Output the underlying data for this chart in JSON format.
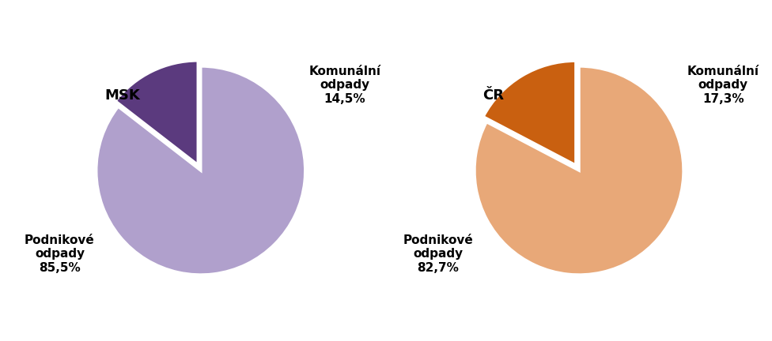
{
  "msk_values": [
    85.5,
    14.5
  ],
  "cr_values": [
    82.7,
    17.3
  ],
  "msk_colors": [
    "#b0a0cc",
    "#5b3a7e"
  ],
  "cr_colors": [
    "#e8a878",
    "#c96010"
  ],
  "msk_label_large": "Podnikové\nodpady\n85,5%",
  "msk_label_small": "Komunální\nodpady\n14,5%",
  "cr_label_large": "Podnikové\nodpady\n82,7%",
  "cr_label_small": "Komunální\nodpady\n17,3%",
  "msk_title": "MSK",
  "cr_title": "ČR",
  "explode_large": 0.0,
  "explode_small": 0.06,
  "background_color": "#ffffff",
  "label_fontsize": 11,
  "title_fontsize": 13,
  "edge_color": "#ffffff"
}
